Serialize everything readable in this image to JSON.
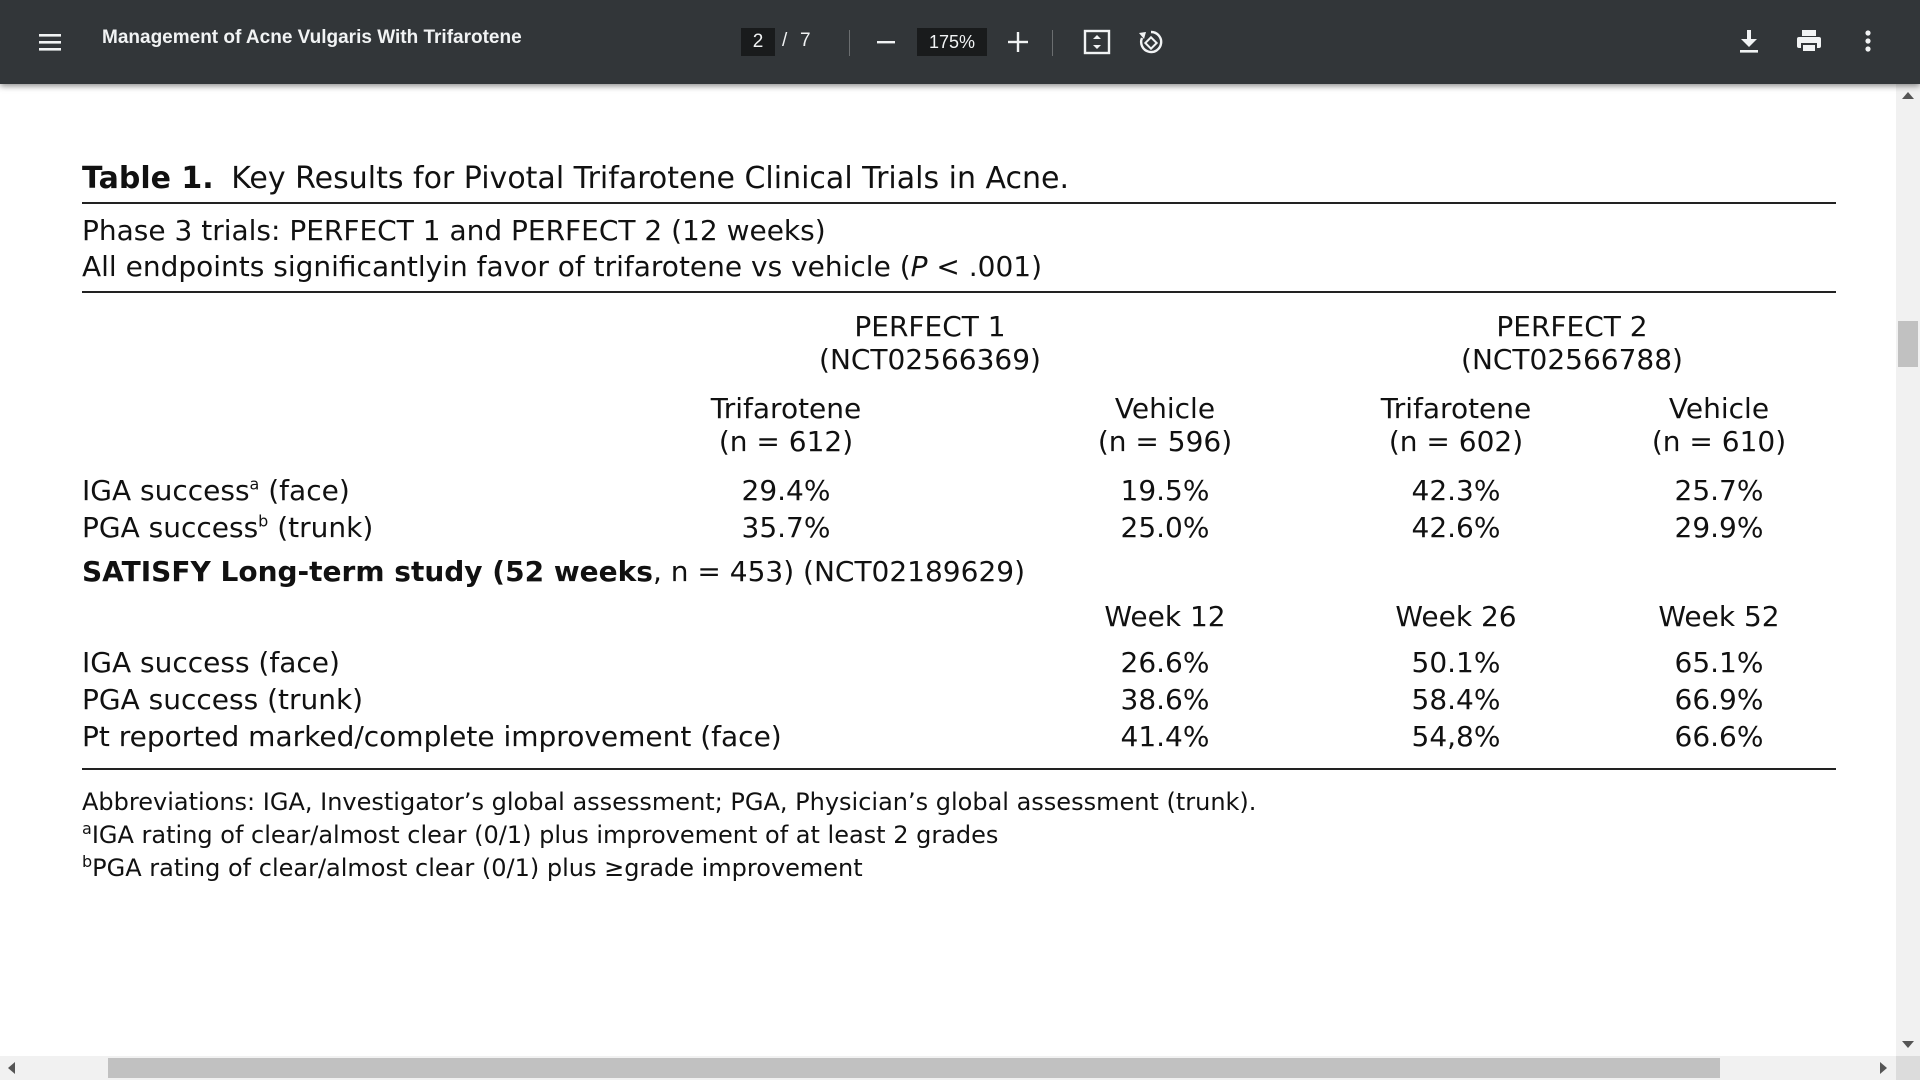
{
  "toolbar": {
    "menu_icon": "hamburger-menu-icon",
    "title": "Management of Acne Vulgaris With Trifarotene",
    "page_current": "2",
    "page_separator": "/",
    "page_total": "7",
    "zoom": "175%",
    "icons": [
      "minus-icon",
      "plus-icon",
      "fit-page-icon",
      "rotate-icon",
      "download-icon",
      "print-icon",
      "more-options-icon"
    ],
    "bg_color": "#323639"
  },
  "document": {
    "table_label": "Table 1.",
    "table_title": "Key Results for Pivotal Trifarotene Clinical Trials in Acne.",
    "phase_line1": "Phase 3 trials: PERFECT 1 and PERFECT 2 (12 weeks)",
    "phase_line2_pre": "All endpoints significantlyin favor of trifarotene vs vehicle (",
    "phase_line2_p": "P",
    "phase_line2_post": " < .001)",
    "perfect1": {
      "name": "PERFECT 1",
      "id": "(NCT02566369)"
    },
    "perfect2": {
      "name": "PERFECT 2",
      "id": "(NCT02566788)"
    },
    "arms": [
      {
        "name": "Trifarotene",
        "n": "(n = 612)"
      },
      {
        "name": "Vehicle",
        "n": "(n = 596)"
      },
      {
        "name": "Trifarotene",
        "n": "(n = 602)"
      },
      {
        "name": "Vehicle",
        "n": "(n = 610)"
      }
    ],
    "perfect_rows": [
      {
        "label": "IGA success",
        "sup": "a",
        "suffix": " (face)",
        "values": [
          "29.4%",
          "19.5%",
          "42.3%",
          "25.7%"
        ]
      },
      {
        "label": "PGA success",
        "sup": "b",
        "suffix": " (trunk)",
        "values": [
          "35.7%",
          "25.0%",
          "42.6%",
          "29.9%"
        ]
      }
    ],
    "satisfy_bold": "SATISFY Long-term study (52 weeks",
    "satisfy_rest": ", n = 453) (NCT02189629)",
    "weeks": [
      "Week 12",
      "Week 26",
      "Week 52"
    ],
    "satisfy_rows": [
      {
        "label": "IGA success (face)",
        "values": [
          "26.6%",
          "50.1%",
          "65.1%"
        ]
      },
      {
        "label": "PGA success (trunk)",
        "values": [
          "38.6%",
          "58.4%",
          "66.9%"
        ]
      },
      {
        "label": "Pt reported marked/complete improvement (face)",
        "values": [
          "41.4%",
          "54,8%",
          "66.6%"
        ]
      }
    ],
    "abbreviations": "Abbreviations: IGA, Investigator’s global assessment; PGA, Physician’s global assessment (trunk).",
    "footnote_a_mark": "a",
    "footnote_a": "IGA rating of clear/almost clear (0/1) plus improvement of at least 2 grades",
    "footnote_b_mark": "b",
    "footnote_b": "PGA rating of clear/almost clear (0/1) plus ≥grade improvement"
  }
}
